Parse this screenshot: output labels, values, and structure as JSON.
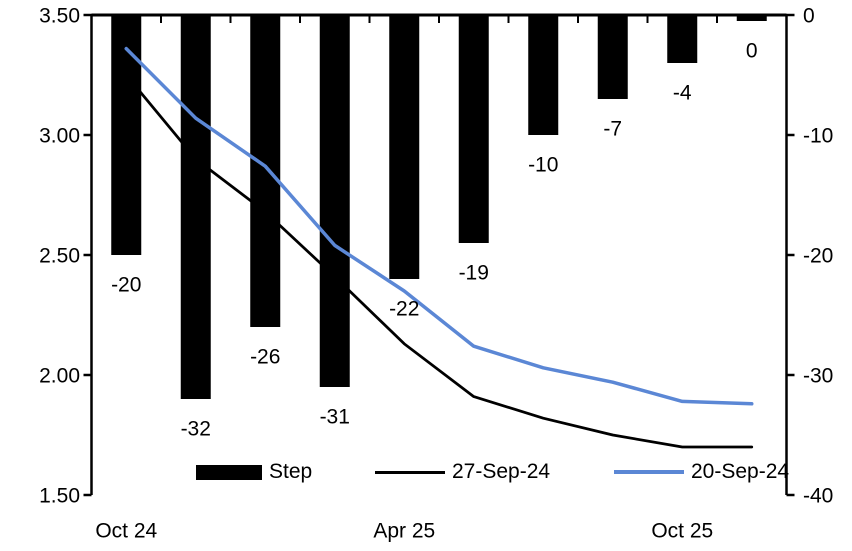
{
  "chart_data": {
    "type": "combo (bar + line)",
    "title": "",
    "num_points": 10,
    "x_tick_labels": [
      {
        "label": "Oct 24",
        "slot": 0
      },
      {
        "label": "Apr 25",
        "slot": 4
      },
      {
        "label": "Oct 25",
        "slot": 8
      }
    ],
    "bar_series": {
      "name": "Step",
      "axis": "right",
      "unit": "bp",
      "color": "#000000",
      "values": [
        -20,
        -32,
        -26,
        -31,
        -22,
        -19,
        -10,
        -7,
        -4,
        0
      ],
      "data_labels": [
        "-20",
        "-32",
        "-26",
        "-31",
        "-22",
        "-19",
        "-10",
        "-7",
        "-4",
        "0"
      ]
    },
    "line_series": [
      {
        "name": "27-Sep-24",
        "axis": "left",
        "color": "#000000",
        "stroke_width": 2.75,
        "values": [
          3.25,
          2.9,
          2.68,
          2.41,
          2.13,
          1.91,
          1.82,
          1.75,
          1.7,
          1.7
        ]
      },
      {
        "name": "20-Sep-24",
        "axis": "left",
        "color": "#5B87D5",
        "stroke_width": 3.5,
        "values": [
          3.36,
          3.07,
          2.87,
          2.54,
          2.35,
          2.12,
          2.03,
          1.97,
          1.89,
          1.88
        ]
      }
    ],
    "left_axis": {
      "min": 1.5,
      "max": 3.5,
      "tick_labels": [
        "3.50",
        "3.00",
        "2.50",
        "2.00",
        "1.50"
      ]
    },
    "right_axis": {
      "min": -40,
      "max": 0,
      "tick_labels": [
        "0",
        "-10",
        "-20",
        "-30",
        "-40"
      ]
    },
    "grid": "off",
    "legend": {
      "position": "bottom",
      "entries": [
        {
          "label": "Step",
          "marker": "bar",
          "color": "#000000"
        },
        {
          "label": "27-Sep-24",
          "marker": "line",
          "color": "#000000"
        },
        {
          "label": "20-Sep-24",
          "marker": "line",
          "color": "#5B87D5"
        }
      ]
    }
  }
}
